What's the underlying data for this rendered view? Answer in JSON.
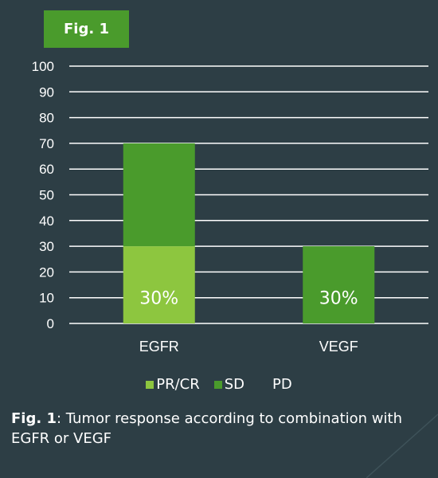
{
  "badge": {
    "label": "Fig. 1"
  },
  "chart_data": {
    "type": "bar",
    "stacked": true,
    "categories": [
      "EGFR",
      "VEGF"
    ],
    "series": [
      {
        "name": "PR/CR",
        "values": [
          30,
          0
        ],
        "color": "#8dc63f"
      },
      {
        "name": "SD",
        "values": [
          40,
          30
        ],
        "color": "#4a9b2c"
      },
      {
        "name": "PD",
        "values": [
          0,
          0
        ],
        "color": "#2d3e45"
      }
    ],
    "data_labels": [
      {
        "category": "EGFR",
        "text": "30%"
      },
      {
        "category": "VEGF",
        "text": "30%"
      }
    ],
    "ylim": [
      0,
      100
    ],
    "yticks": [
      0,
      10,
      20,
      30,
      40,
      50,
      60,
      70,
      80,
      90,
      100
    ],
    "grid": true,
    "legend_position": "bottom"
  },
  "caption": {
    "lead": "Fig. 1",
    "text": ": Tumor response according to combination with EGFR or VEGF"
  },
  "colors": {
    "background": "#2d3e45",
    "badge": "#4a9b2c",
    "gridline": "#ffffff"
  }
}
